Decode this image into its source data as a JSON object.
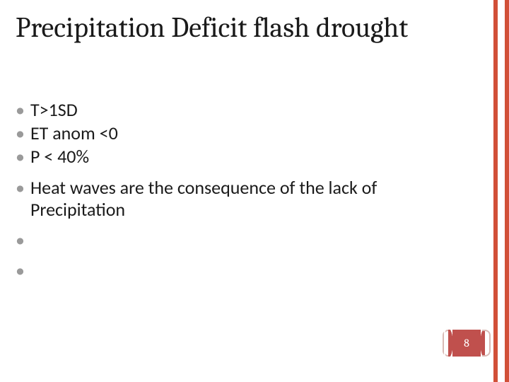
{
  "title": "Precipitation Deficit flash drought",
  "title_fontsize": 40,
  "title_color": "#1a1a1a",
  "bullets": [
    {
      "text": "T>1SD",
      "spacer_after": false
    },
    {
      "text": "ET anom <0",
      "spacer_after": false
    },
    {
      "text": "P < 40%",
      "spacer_after": true
    },
    {
      "text": " Heat waves are the  consequence of the lack of Precipitation",
      "spacer_after": true
    },
    {
      "text": "",
      "spacer_after": true
    },
    {
      "text": "",
      "spacer_after": false
    }
  ],
  "bullet_fontsize": 26,
  "bullet_dot_color": "#9a9a9a",
  "bullet_text_color": "#1a1a1a",
  "accent_bar_color": "#d15038",
  "page_badge_bg": "#c0504d",
  "page_number": "8",
  "page_number_fontsize": 16,
  "background_color": "#ffffff"
}
